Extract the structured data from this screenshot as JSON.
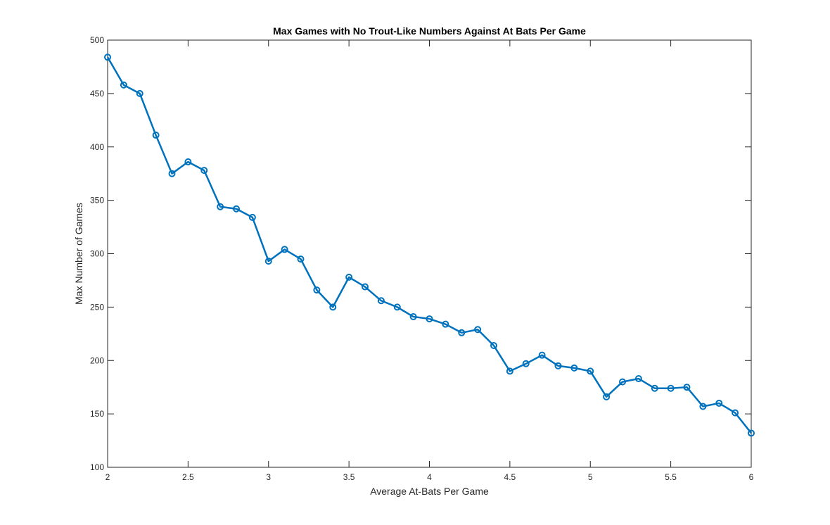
{
  "chart_data": {
    "type": "line",
    "title": "Max Games with No Trout-Like Numbers Against At Bats Per Game",
    "xlabel": "Average At-Bats Per Game",
    "ylabel": "Max Number of Games",
    "xlim": [
      2,
      6
    ],
    "ylim": [
      100,
      500
    ],
    "xticks": [
      2,
      2.5,
      3,
      3.5,
      4,
      4.5,
      5,
      5.5,
      6
    ],
    "xtick_labels": [
      "2",
      "2.5",
      "3",
      "3.5",
      "4",
      "4.5",
      "5",
      "5.5",
      "6"
    ],
    "yticks": [
      100,
      150,
      200,
      250,
      300,
      350,
      400,
      450,
      500
    ],
    "ytick_labels": [
      "100",
      "150",
      "200",
      "250",
      "300",
      "350",
      "400",
      "450",
      "500"
    ],
    "grid": false,
    "marker": "circle",
    "color": "#0072BD",
    "x": [
      2,
      2.1,
      2.2,
      2.3,
      2.4,
      2.5,
      2.6,
      2.7,
      2.8,
      2.9,
      3,
      3.1,
      3.2,
      3.3,
      3.4,
      3.5,
      3.6,
      3.7,
      3.8,
      3.9,
      4,
      4.1,
      4.2,
      4.3,
      4.4,
      4.5,
      4.6,
      4.7,
      4.8,
      4.9,
      5,
      5.1,
      5.2,
      5.3,
      5.4,
      5.5,
      5.6,
      5.7,
      5.8,
      5.9,
      6
    ],
    "y": [
      484,
      458,
      450,
      411,
      375,
      386,
      378,
      344,
      342,
      334,
      293,
      304,
      295,
      266,
      250,
      278,
      269,
      256,
      250,
      241,
      239,
      234,
      226,
      229,
      214,
      190,
      197,
      205,
      195,
      193,
      190,
      166,
      180,
      183,
      174,
      174,
      175,
      157,
      160,
      151,
      132
    ]
  }
}
